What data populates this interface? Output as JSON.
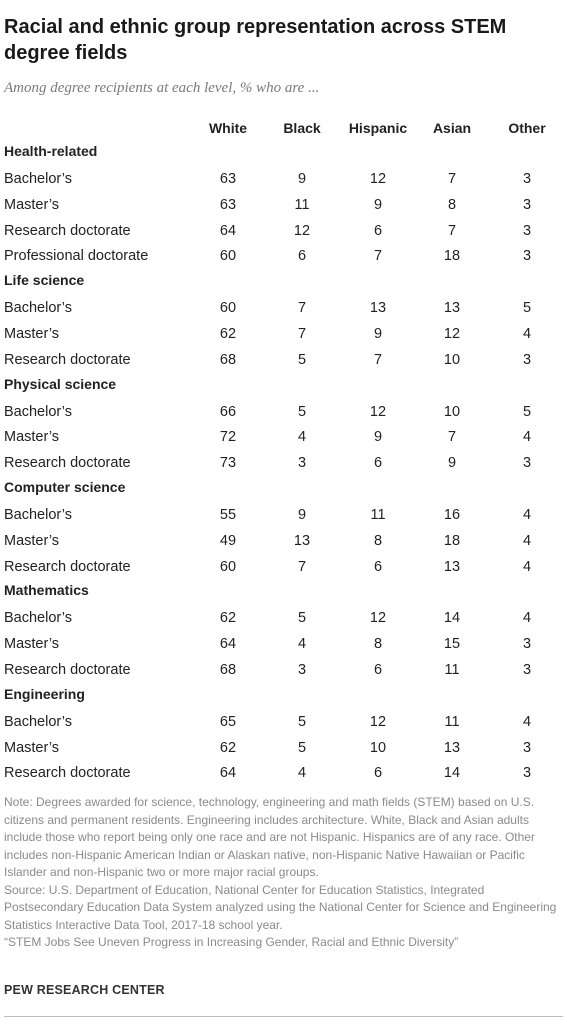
{
  "title": "Racial and ethnic group representation across STEM degree fields",
  "subtitle": "Among degree recipients at each level, % who are ...",
  "chart_data": {
    "type": "table",
    "columns": [
      "White",
      "Black",
      "Hispanic",
      "Asian",
      "Other"
    ],
    "groups": [
      {
        "name": "Health-related",
        "rows": [
          {
            "label": "Bachelor’s",
            "values": [
              63,
              9,
              12,
              7,
              3
            ]
          },
          {
            "label": "Master’s",
            "values": [
              63,
              11,
              9,
              8,
              3
            ]
          },
          {
            "label": "Research doctorate",
            "values": [
              64,
              12,
              6,
              7,
              3
            ]
          },
          {
            "label": "Professional doctorate",
            "values": [
              60,
              6,
              7,
              18,
              3
            ]
          }
        ]
      },
      {
        "name": "Life science",
        "rows": [
          {
            "label": "Bachelor’s",
            "values": [
              60,
              7,
              13,
              13,
              5
            ]
          },
          {
            "label": "Master’s",
            "values": [
              62,
              7,
              9,
              12,
              4
            ]
          },
          {
            "label": "Research doctorate",
            "values": [
              68,
              5,
              7,
              10,
              3
            ]
          }
        ]
      },
      {
        "name": "Physical science",
        "rows": [
          {
            "label": "Bachelor’s",
            "values": [
              66,
              5,
              12,
              10,
              5
            ]
          },
          {
            "label": "Master’s",
            "values": [
              72,
              4,
              9,
              7,
              4
            ]
          },
          {
            "label": "Research doctorate",
            "values": [
              73,
              3,
              6,
              9,
              3
            ]
          }
        ]
      },
      {
        "name": "Computer science",
        "rows": [
          {
            "label": "Bachelor’s",
            "values": [
              55,
              9,
              11,
              16,
              4
            ]
          },
          {
            "label": "Master’s",
            "values": [
              49,
              13,
              8,
              18,
              4
            ]
          },
          {
            "label": "Research doctorate",
            "values": [
              60,
              7,
              6,
              13,
              4
            ]
          }
        ]
      },
      {
        "name": "Mathematics",
        "rows": [
          {
            "label": "Bachelor’s",
            "values": [
              62,
              5,
              12,
              14,
              4
            ]
          },
          {
            "label": "Master’s",
            "values": [
              64,
              4,
              8,
              15,
              3
            ]
          },
          {
            "label": "Research doctorate",
            "values": [
              68,
              3,
              6,
              11,
              3
            ]
          }
        ]
      },
      {
        "name": "Engineering",
        "rows": [
          {
            "label": "Bachelor’s",
            "values": [
              65,
              5,
              12,
              11,
              4
            ]
          },
          {
            "label": "Master’s",
            "values": [
              62,
              5,
              10,
              13,
              3
            ]
          },
          {
            "label": "Research doctorate",
            "values": [
              64,
              4,
              6,
              14,
              3
            ]
          }
        ]
      }
    ]
  },
  "notes": {
    "note": "Note: Degrees awarded for science, technology, engineering and math fields (STEM) based on U.S. citizens and permanent residents. Engineering includes architecture. White, Black and Asian adults include those who report being only one race and are not Hispanic. Hispanics are of any race. Other includes non-Hispanic American Indian or Alaskan native, non-Hispanic Native Hawaiian or Pacific Islander and non-Hispanic two or more major racial groups.",
    "source": "Source: U.S. Department of Education, National Center for Education Statistics, Integrated Postsecondary Education Data System analyzed using the National Center for Science and Engineering Statistics Interactive Data Tool, 2017-18 school year.",
    "report": "“STEM Jobs See Uneven Progress in Increasing Gender, Racial and Ethnic Diversity”"
  },
  "brand": "PEW RESEARCH CENTER"
}
